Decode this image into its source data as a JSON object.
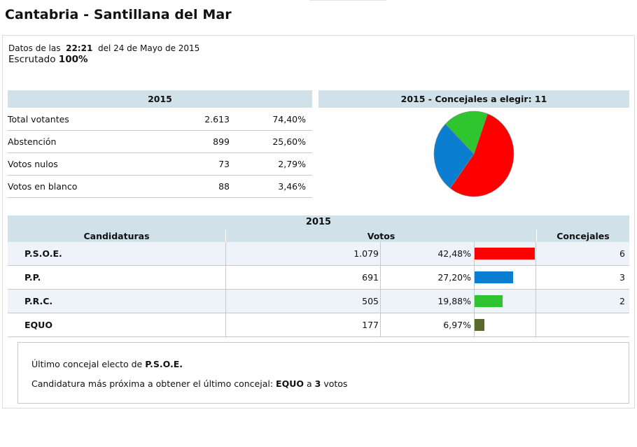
{
  "page": {
    "title": "Cantabria - Santillana del Mar"
  },
  "info": {
    "datos_prefix": "Datos de las",
    "time": "22:21",
    "date_text": "del 24 de Mayo de 2015",
    "escrutado_label": "Escrutado",
    "escrutado_value": "100%"
  },
  "summary": {
    "header": "2015",
    "rows": [
      {
        "label": "Total votantes",
        "value": "2.613",
        "percent": "74,40%"
      },
      {
        "label": "Abstención",
        "value": "899",
        "percent": "25,60%"
      },
      {
        "label": "Votos nulos",
        "value": "73",
        "percent": "2,79%"
      },
      {
        "label": "Votos en blanco",
        "value": "88",
        "percent": "3,46%"
      }
    ]
  },
  "pie": {
    "header": "2015 - Concejales a elegir: 11",
    "slices": [
      {
        "party": "P.S.O.E.",
        "seats": 6,
        "color": "#ff0000"
      },
      {
        "party": "P.P.",
        "seats": 3,
        "color": "#0a7fd1"
      },
      {
        "party": "P.R.C.",
        "seats": 2,
        "color": "#2ec52e"
      }
    ]
  },
  "results": {
    "header": "2015",
    "columns": {
      "candidaturas": "Candidaturas",
      "votos": "Votos",
      "concejales": "Concejales"
    },
    "rows": [
      {
        "party": "P.S.O.E.",
        "votes": "1.079",
        "percent": "42,48%",
        "pct_value": 42.48,
        "seats": "6",
        "color": "#ff0000"
      },
      {
        "party": "P.P.",
        "votes": "691",
        "percent": "27,20%",
        "pct_value": 27.2,
        "seats": "3",
        "color": "#0a7fd1"
      },
      {
        "party": "P.R.C.",
        "votes": "505",
        "percent": "19,88%",
        "pct_value": 19.88,
        "seats": "2",
        "color": "#2ec52e"
      },
      {
        "party": "EQUO",
        "votes": "177",
        "percent": "6,97%",
        "pct_value": 6.97,
        "seats": "",
        "color": "#5a6a2e"
      }
    ]
  },
  "footer": {
    "line1_prefix": "Último concejal electo de",
    "line1_party": "P.S.O.E.",
    "line2_prefix": "Candidatura más próxima a obtener el último concejal:",
    "line2_party": "EQUO",
    "line2_mid": "a",
    "line2_count": "3",
    "line2_suffix": "votos"
  }
}
